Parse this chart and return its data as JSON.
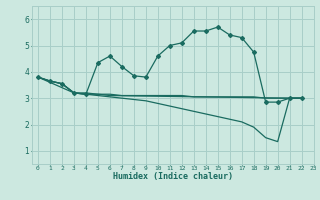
{
  "xlabel": "Humidex (Indice chaleur)",
  "background_color": "#cce8e0",
  "grid_color": "#a8cec8",
  "line_color": "#1a6b60",
  "xlim": [
    -0.5,
    23
  ],
  "ylim": [
    0.5,
    6.5
  ],
  "xticks": [
    0,
    1,
    2,
    3,
    4,
    5,
    6,
    7,
    8,
    9,
    10,
    11,
    12,
    13,
    14,
    15,
    16,
    17,
    18,
    19,
    20,
    21,
    22,
    23
  ],
  "yticks": [
    1,
    2,
    3,
    4,
    5,
    6
  ],
  "curves": [
    {
      "x": [
        0,
        1,
        2,
        3,
        4,
        5,
        6,
        7,
        8,
        9,
        10,
        11,
        12,
        13,
        14,
        15,
        16,
        17,
        18,
        19,
        20,
        21,
        22
      ],
      "y": [
        3.8,
        3.65,
        3.55,
        3.2,
        3.15,
        4.35,
        4.6,
        4.2,
        3.85,
        3.8,
        4.6,
        5.0,
        5.1,
        5.55,
        5.55,
        5.7,
        5.4,
        5.3,
        4.75,
        2.85,
        2.85,
        3.0,
        3.0
      ],
      "marker": true
    },
    {
      "x": [
        0,
        1,
        2,
        3,
        4,
        5,
        6,
        7,
        8,
        9,
        10,
        11,
        12,
        13,
        14,
        15,
        16,
        17,
        18,
        19,
        20,
        21,
        22
      ],
      "y": [
        3.8,
        3.65,
        3.55,
        3.2,
        3.15,
        3.15,
        3.15,
        3.1,
        3.1,
        3.1,
        3.1,
        3.1,
        3.1,
        3.05,
        3.05,
        3.05,
        3.05,
        3.05,
        3.05,
        3.0,
        3.0,
        3.0,
        3.0
      ],
      "marker": false
    },
    {
      "x": [
        0,
        1,
        2,
        3,
        4,
        5,
        6,
        7,
        8,
        9,
        10,
        11,
        12,
        13,
        14,
        15,
        16,
        17,
        18,
        19,
        20,
        21,
        22
      ],
      "y": [
        3.8,
        3.65,
        3.55,
        3.2,
        3.15,
        3.1,
        3.05,
        3.0,
        2.95,
        2.9,
        2.8,
        2.7,
        2.6,
        2.5,
        2.4,
        2.3,
        2.2,
        2.1,
        1.9,
        1.5,
        1.35,
        3.0,
        3.0
      ],
      "marker": false
    },
    {
      "x": [
        0,
        3,
        4,
        5,
        6,
        21,
        22
      ],
      "y": [
        3.8,
        3.2,
        3.2,
        3.15,
        3.1,
        3.0,
        3.0
      ],
      "marker": false
    }
  ]
}
